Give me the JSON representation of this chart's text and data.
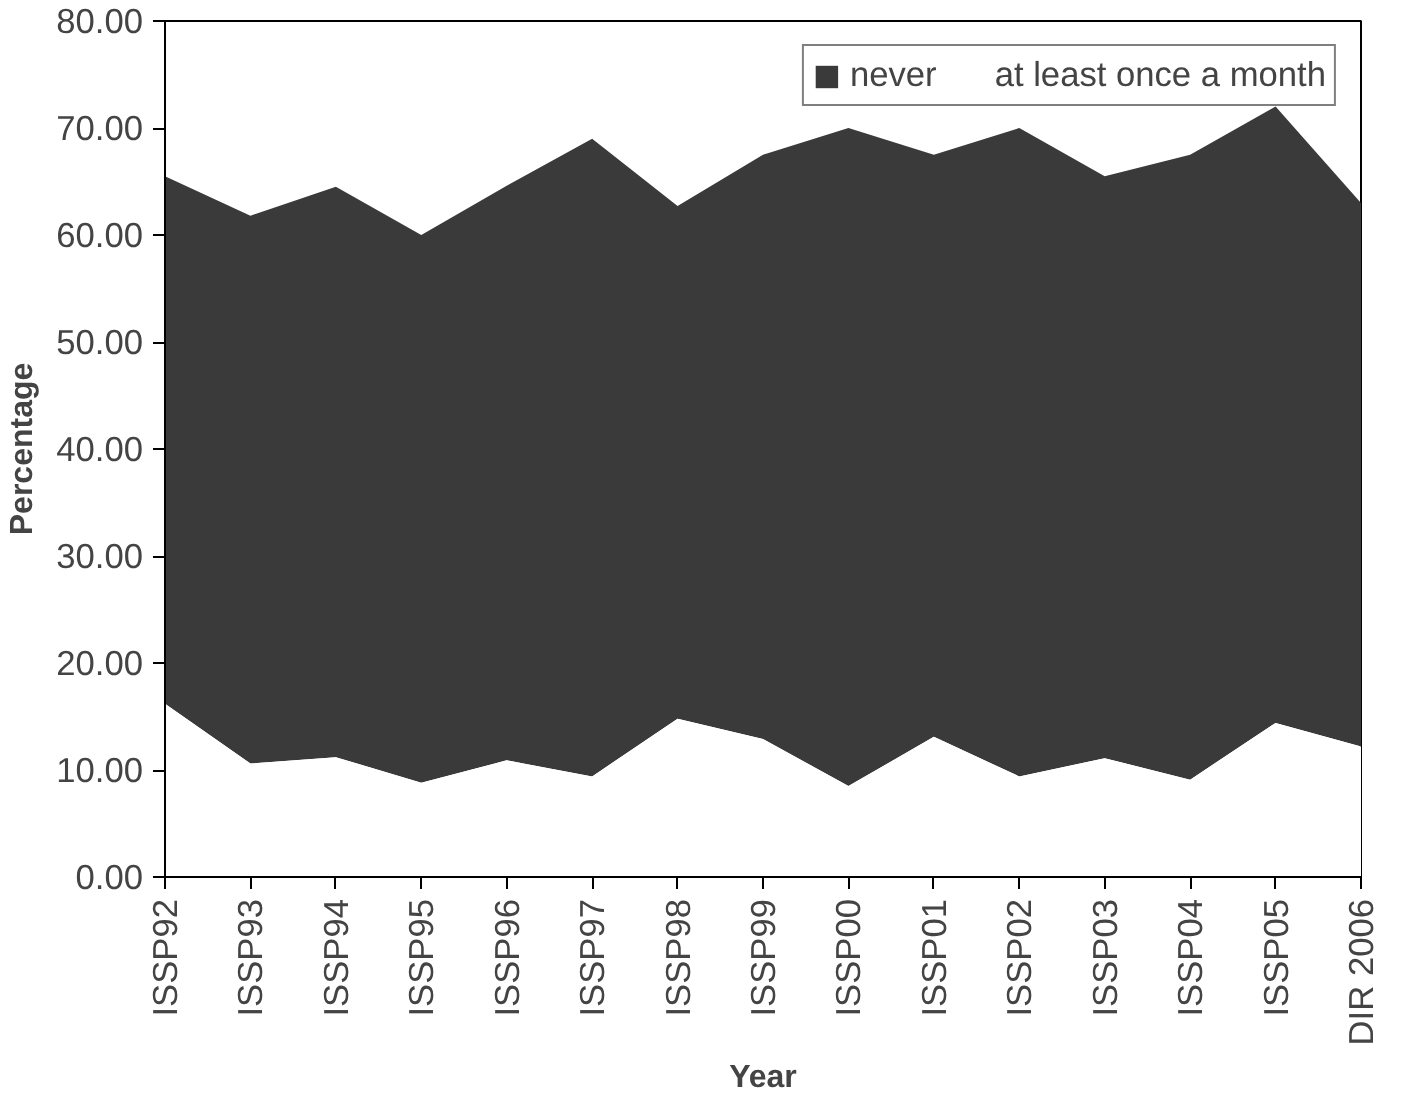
{
  "chart_data": {
    "type": "area",
    "xlabel": "Year",
    "ylabel": "Percentage",
    "categories": [
      "ISSP92",
      "ISSP93",
      "ISSP94",
      "ISSP95",
      "ISSP96",
      "ISSP97",
      "ISSP98",
      "ISSP99",
      "ISSP00",
      "ISSP01",
      "ISSP02",
      "ISSP03",
      "ISSP04",
      "ISSP05",
      "DIR 2006"
    ],
    "series": [
      {
        "name": "at least once a month",
        "color": "#ffffff",
        "values": [
          16.2,
          10.6,
          11.2,
          8.8,
          10.9,
          9.4,
          14.8,
          12.9,
          8.5,
          13.1,
          9.4,
          11.1,
          9.1,
          14.4,
          12.2
        ]
      },
      {
        "name": "never",
        "color": "#3a3a3a",
        "values": [
          65.5,
          61.8,
          64.5,
          60.0,
          64.6,
          69.0,
          62.7,
          67.5,
          70.0,
          67.5,
          70.0,
          65.5,
          67.5,
          72.0,
          63.0
        ]
      }
    ],
    "ylim": [
      0,
      80
    ],
    "yticks": [
      {
        "value": 0,
        "label": "0.00"
      },
      {
        "value": 10,
        "label": "10.00"
      },
      {
        "value": 20,
        "label": "20.00"
      },
      {
        "value": 30,
        "label": "30.00"
      },
      {
        "value": 40,
        "label": "40.00"
      },
      {
        "value": 50,
        "label": "50.00"
      },
      {
        "value": 60,
        "label": "60.00"
      },
      {
        "value": 70,
        "label": "70.00"
      },
      {
        "value": 80,
        "label": "80.00"
      }
    ],
    "legend": "top right",
    "grid": false
  }
}
